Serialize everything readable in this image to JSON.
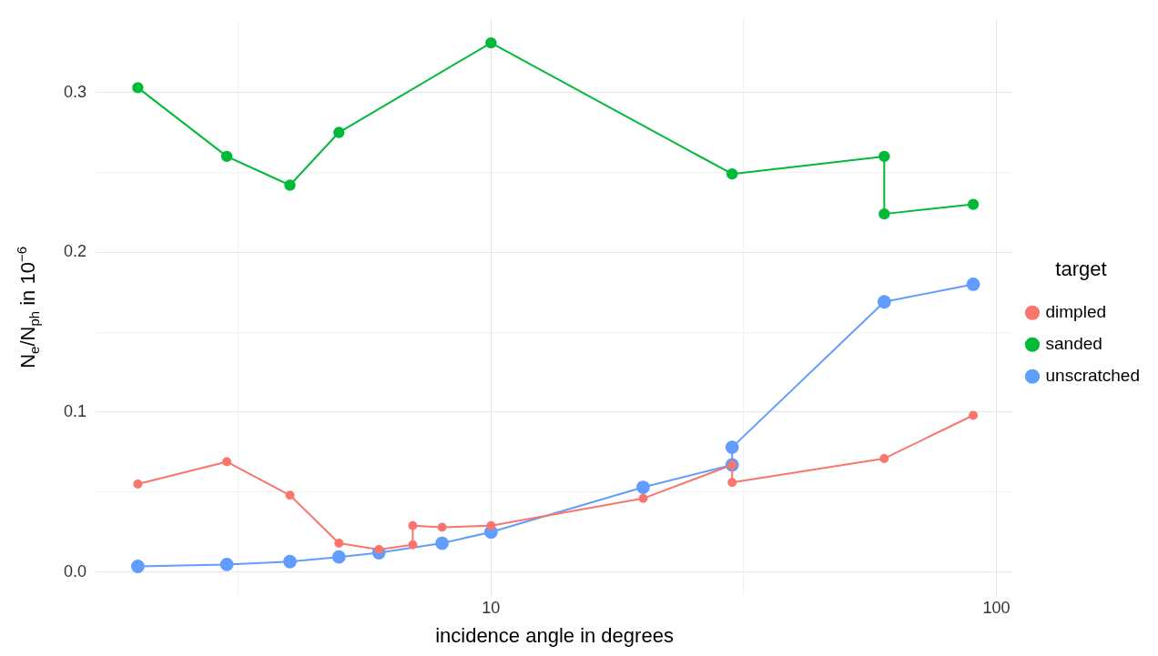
{
  "chart_data": {
    "type": "line",
    "xlabel": "incidence angle in degrees",
    "ylabel": "N$_{e}$/N$_{ph}$ in 10$^{−6}$",
    "legend_title": "target",
    "log": "x",
    "grid": true,
    "legend": "right",
    "marker": "circle",
    "xlim": [
      1.65,
      108
    ],
    "ylim": [
      -0.015,
      0.346
    ],
    "xticks": [
      {
        "value": 3.162,
        "label": null
      },
      10,
      {
        "value": 31.62,
        "label": null
      },
      100
    ],
    "yticks": [
      {
        "value": 0,
        "label": "0.0"
      },
      {
        "value": 0.05,
        "label": null
      },
      0.1,
      {
        "value": 0.15,
        "label": null
      },
      0.2,
      {
        "value": 0.25,
        "label": null
      },
      0.3
    ],
    "series": [
      {
        "name": "dimpled",
        "color": "#f8766d",
        "x": [
          2,
          3,
          4,
          5,
          6,
          7,
          7,
          8,
          10,
          20,
          30,
          30,
          60,
          90
        ],
        "values": [
          0.055,
          0.069,
          0.048,
          0.018,
          0.014,
          0.017,
          0.029,
          0.028,
          0.029,
          0.046,
          0.067,
          0.056,
          0.071,
          0.098
        ]
      },
      {
        "name": "sanded",
        "color": "#00ba38",
        "x": [
          2,
          3,
          4,
          5,
          10,
          30,
          60,
          60,
          90
        ],
        "values": [
          0.303,
          0.26,
          0.242,
          0.275,
          0.331,
          0.249,
          0.26,
          0.224,
          0.23
        ]
      },
      {
        "name": "unscratched",
        "color": "#619cff",
        "x": [
          2,
          3,
          4,
          5,
          6,
          8,
          10,
          20,
          30,
          30,
          60,
          90
        ],
        "values": [
          0.0035,
          0.0047,
          0.0065,
          0.0094,
          0.012,
          0.018,
          0.025,
          0.053,
          0.067,
          0.078,
          0.169,
          0.18
        ]
      }
    ]
  }
}
